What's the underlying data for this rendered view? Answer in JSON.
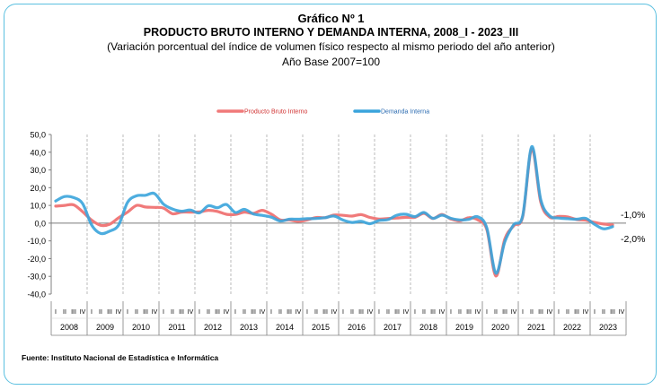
{
  "header": {
    "title": "Gráfico Nº 1",
    "subtitle": "PRODUCTO BRUTO INTERNO Y DEMANDA INTERNA, 2008_I - 2023_III",
    "description": "(Variación porcentual del índice de volumen físico respecto al mismo periodo del año anterior)",
    "base": "Año Base 2007=100"
  },
  "footer": {
    "source": "Fuente: Instituto Nacional de Estadística e Informática"
  },
  "colors": {
    "pbi": "#f07a7a",
    "demanda": "#3aa4dc",
    "grid": "#b0b0b0",
    "frame": "#5bc0e0"
  },
  "chart_data": {
    "type": "line",
    "legend_position": "top-center",
    "grid": "vertical dashed separators between years",
    "ylim": [
      -40,
      50
    ],
    "yticks": [
      "50,0",
      "40,0",
      "30,0",
      "20,0",
      "10,0",
      "0,0",
      "-10,0",
      "-20,0",
      "-30,0",
      "-40,0"
    ],
    "quarter_labels": [
      "I",
      "II",
      "III",
      "IV"
    ],
    "years": [
      "2008",
      "2009",
      "2010",
      "2011",
      "2012",
      "2013",
      "2014",
      "2015",
      "2016",
      "2017",
      "2018",
      "2019",
      "2020",
      "2021",
      "2022",
      "2023"
    ],
    "series": [
      {
        "name": "Producto Bruto Interno",
        "color": "#f07a7a",
        "values": [
          9.6,
          10.0,
          10.3,
          6.4,
          1.7,
          -1.2,
          -0.6,
          3.0,
          6.2,
          10.0,
          9.1,
          8.9,
          8.5,
          5.3,
          6.2,
          6.2,
          6.3,
          7.2,
          6.6,
          5.0,
          4.9,
          6.2,
          5.5,
          7.2,
          5.1,
          1.8,
          1.8,
          1.0,
          1.8,
          3.2,
          3.1,
          4.6,
          4.4,
          4.0,
          4.8,
          3.2,
          2.3,
          2.6,
          2.9,
          3.3,
          3.3,
          5.5,
          2.6,
          4.9,
          2.3,
          1.3,
          3.1,
          1.8,
          -3.7,
          -29.8,
          -9.0,
          -1.4,
          3.8,
          41.9,
          11.9,
          3.4,
          3.8,
          3.5,
          2.0,
          1.7,
          0.4,
          -0.5,
          -1.0
        ],
        "end_label": "-1,0%"
      },
      {
        "name": "Demanda Interna",
        "color": "#3aa4dc",
        "values": [
          12.5,
          15.0,
          14.4,
          11.0,
          -1.0,
          -5.8,
          -4.5,
          -1.1,
          11.7,
          15.4,
          15.7,
          16.7,
          10.7,
          8.0,
          6.7,
          7.4,
          5.8,
          9.8,
          8.7,
          10.5,
          6.0,
          7.8,
          5.2,
          4.4,
          3.4,
          1.2,
          2.2,
          2.2,
          2.5,
          2.6,
          3.1,
          4.0,
          1.7,
          0.4,
          1.0,
          -0.3,
          1.5,
          2.0,
          4.5,
          5.0,
          3.7,
          6.0,
          2.7,
          4.5,
          2.7,
          1.8,
          2.1,
          3.6,
          -2.8,
          -28.2,
          -10.5,
          -0.8,
          4.3,
          43.1,
          13.3,
          4.1,
          2.9,
          2.5,
          2.2,
          2.7,
          -0.7,
          -3.2,
          -2.0
        ],
        "end_label": "-2,0%"
      }
    ]
  }
}
